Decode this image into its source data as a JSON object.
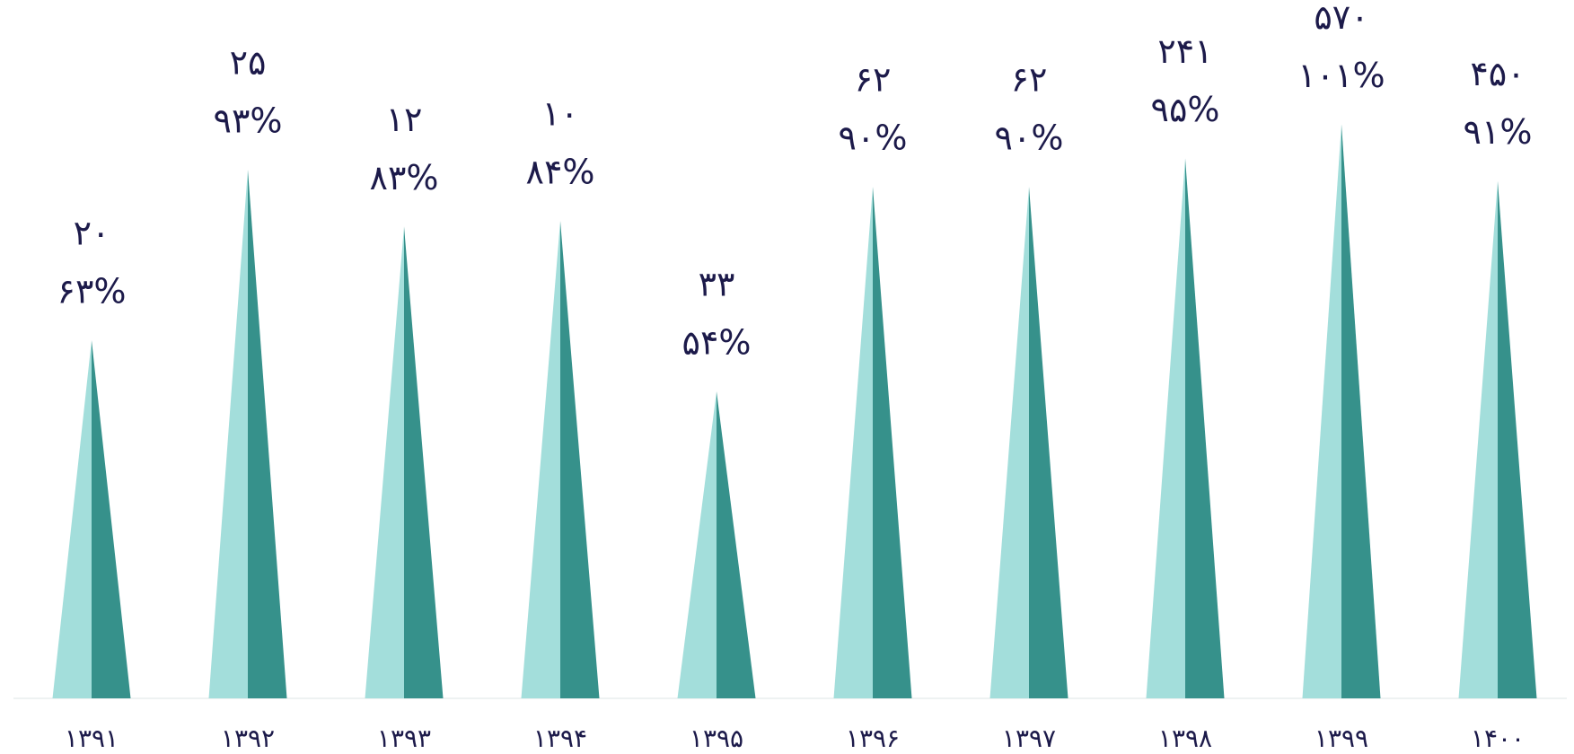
{
  "chart_data": {
    "type": "spike",
    "categories": [
      "۱۳۹۱",
      "۱۳۹۲",
      "۱۳۹۳",
      "۱۳۹۴",
      "۱۳۹۵",
      "۱۳۹۶",
      "۱۳۹۷",
      "۱۳۹۸",
      "۱۳۹۹",
      "۱۴۰۰"
    ],
    "values": [
      63,
      93,
      83,
      84,
      54,
      90,
      90,
      95,
      101,
      91
    ],
    "value_labels": [
      "۶۳%",
      "۹۳%",
      "۸۳%",
      "۸۴%",
      "۵۴%",
      "۹۰%",
      "۹۰%",
      "۹۵%",
      "۱۰۱%",
      "۹۱%"
    ],
    "count_labels": [
      "۲۰",
      "۲۵",
      "۱۲",
      "۱۰",
      "۳۳",
      "۶۲",
      "۶۲",
      "۲۴۱",
      "۵۷۰",
      "۴۵۰"
    ],
    "colors": [
      "#a3dedb",
      "#36918b"
    ],
    "ylim": [
      0,
      120
    ]
  }
}
